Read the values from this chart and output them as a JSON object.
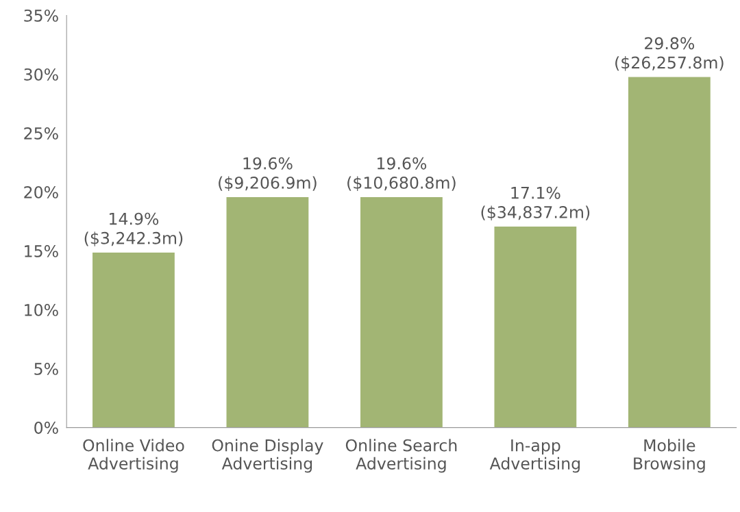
{
  "chart_data": {
    "type": "bar",
    "categories": [
      "Online Video\nAdvertising",
      "Onine Display\nAdvertising",
      "Online Search\nAdvertising",
      "In-app\nAdvertising",
      "Mobile\nBrowsing"
    ],
    "values": [
      14.9,
      19.6,
      19.6,
      17.1,
      29.8
    ],
    "value_labels": [
      "14.9%\n($3,242.3m)",
      "19.6%\n($9,206.9m)",
      "19.6%\n($10,680.8m)",
      "17.1%\n($34,837.2m)",
      "29.8%\n($26,257.8m)"
    ],
    "color": "#a2b574",
    "ylim": [
      0,
      35
    ],
    "yticks": [
      {
        "value": 0,
        "label": "0%"
      },
      {
        "value": 5,
        "label": "5%"
      },
      {
        "value": 10,
        "label": "10%"
      },
      {
        "value": 15,
        "label": "15%"
      },
      {
        "value": 20,
        "label": "20%"
      },
      {
        "value": 25,
        "label": "25%"
      },
      {
        "value": 30,
        "label": "30%"
      },
      {
        "value": 35,
        "label": "35%"
      }
    ],
    "grid": false,
    "legend": false
  }
}
